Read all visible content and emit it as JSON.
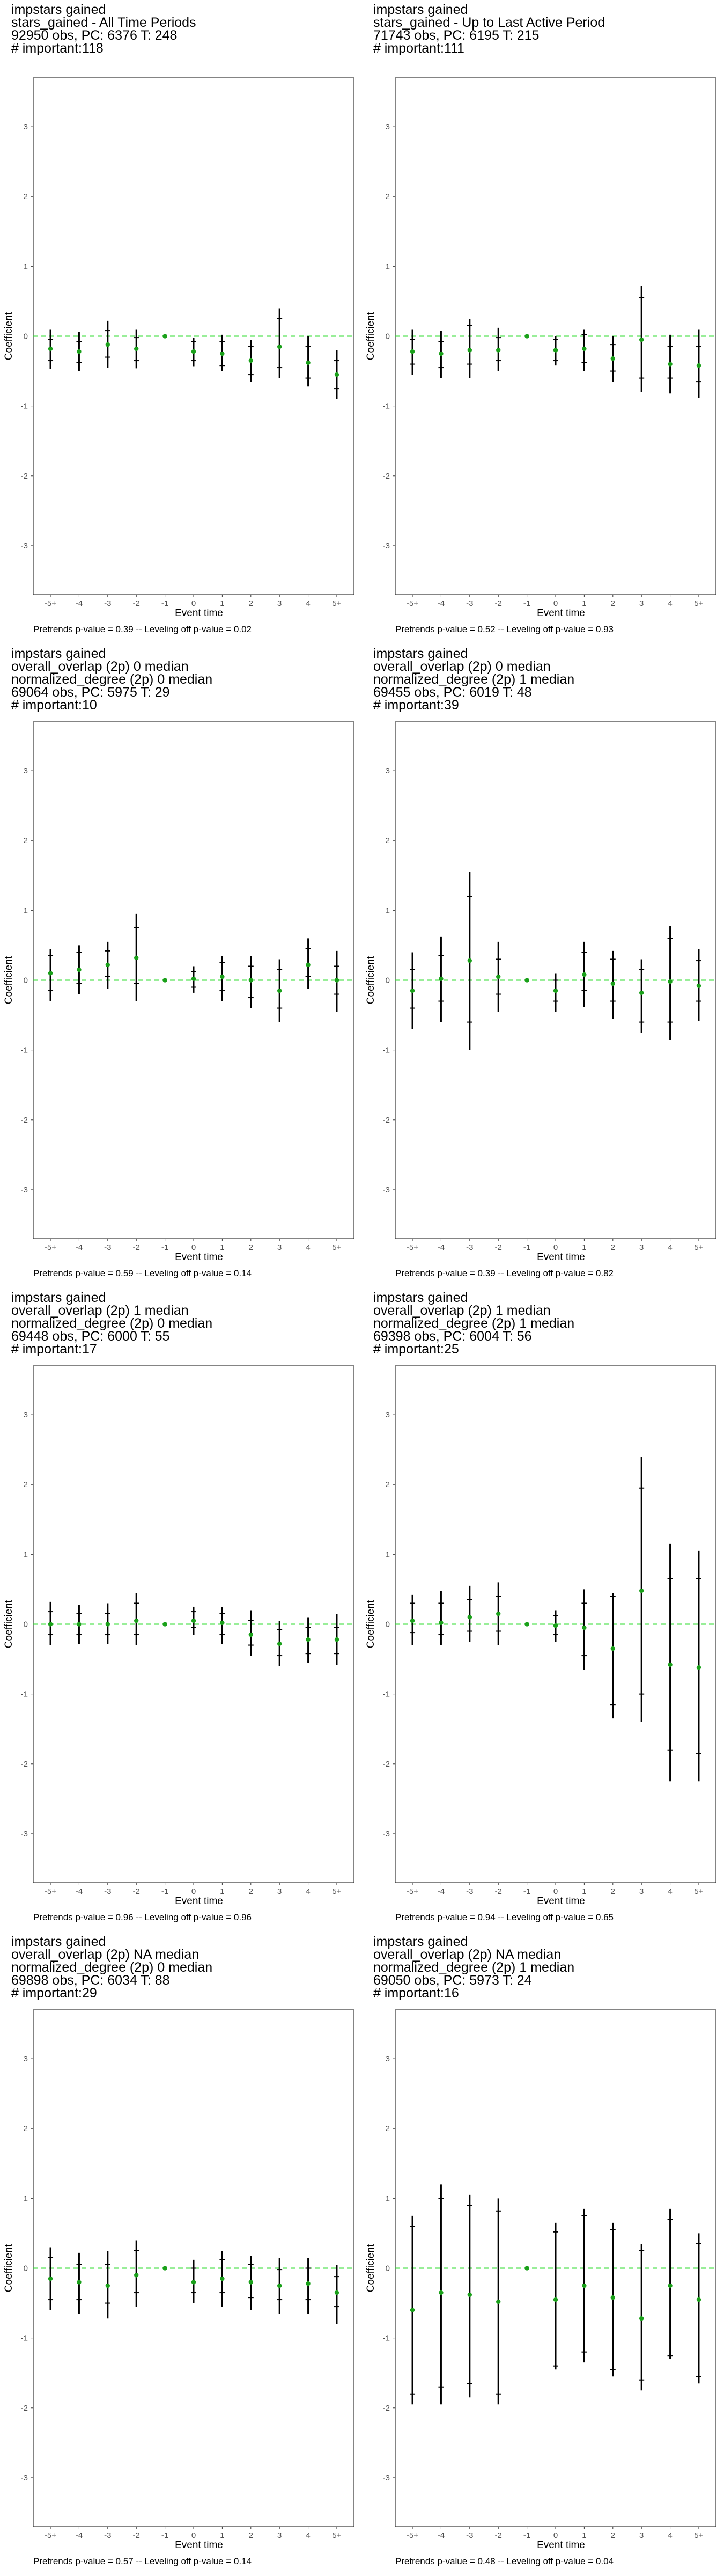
{
  "chart_data": [
    {
      "type": "event-study",
      "title_lines": [
        "impstars gained",
        "stars_gained - All Time Periods",
        "92950 obs, PC: 6376 T: 248",
        "# important:118"
      ],
      "xlabel": "Event time",
      "ylabel": "Coefficient",
      "categories": [
        "-5+",
        "-4",
        "-3",
        "-2",
        "-1",
        "0",
        "1",
        "2",
        "3",
        "4",
        "5+"
      ],
      "ylim": [
        -3.7,
        3.7
      ],
      "yticks": [
        -3,
        -2,
        -1,
        0,
        1,
        2,
        3
      ],
      "points": [
        {
          "est": -0.18,
          "lo_in": -0.35,
          "hi_in": -0.05,
          "lo": -0.47,
          "hi": 0.1
        },
        {
          "est": -0.22,
          "lo_in": -0.38,
          "hi_in": -0.08,
          "lo": -0.5,
          "hi": 0.06
        },
        {
          "est": -0.12,
          "lo_in": -0.3,
          "hi_in": 0.08,
          "lo": -0.45,
          "hi": 0.22
        },
        {
          "est": -0.18,
          "lo_in": -0.35,
          "hi_in": -0.02,
          "lo": -0.46,
          "hi": 0.1
        },
        {
          "est": 0,
          "lo_in": 0,
          "hi_in": 0,
          "lo": 0,
          "hi": 0
        },
        {
          "est": -0.22,
          "lo_in": -0.35,
          "hi_in": -0.08,
          "lo": -0.43,
          "hi": -0.02
        },
        {
          "est": -0.25,
          "lo_in": -0.42,
          "hi_in": -0.08,
          "lo": -0.5,
          "hi": 0.02
        },
        {
          "est": -0.35,
          "lo_in": -0.55,
          "hi_in": -0.15,
          "lo": -0.65,
          "hi": -0.05
        },
        {
          "est": -0.15,
          "lo_in": -0.45,
          "hi_in": 0.25,
          "lo": -0.6,
          "hi": 0.4
        },
        {
          "est": -0.38,
          "lo_in": -0.6,
          "hi_in": -0.15,
          "lo": -0.72,
          "hi": 0.0
        },
        {
          "est": -0.55,
          "lo_in": -0.75,
          "hi_in": -0.35,
          "lo": -0.9,
          "hi": -0.2
        }
      ],
      "footer": "Pretrends p-value = 0.39 -- Leveling off p-value = 0.02"
    },
    {
      "type": "event-study",
      "title_lines": [
        "impstars gained",
        "stars_gained - Up to Last Active Period",
        "71743 obs, PC: 6195 T: 215",
        "# important:111"
      ],
      "xlabel": "Event time",
      "ylabel": "Coefficient",
      "categories": [
        "-5+",
        "-4",
        "-3",
        "-2",
        "-1",
        "0",
        "1",
        "2",
        "3",
        "4",
        "5+"
      ],
      "ylim": [
        -3.7,
        3.7
      ],
      "yticks": [
        -3,
        -2,
        -1,
        0,
        1,
        2,
        3
      ],
      "points": [
        {
          "est": -0.22,
          "lo_in": -0.4,
          "hi_in": -0.05,
          "lo": -0.55,
          "hi": 0.1
        },
        {
          "est": -0.25,
          "lo_in": -0.45,
          "hi_in": -0.08,
          "lo": -0.6,
          "hi": 0.08
        },
        {
          "est": -0.2,
          "lo_in": -0.4,
          "hi_in": 0.15,
          "lo": -0.6,
          "hi": 0.25
        },
        {
          "est": -0.2,
          "lo_in": -0.35,
          "hi_in": -0.02,
          "lo": -0.5,
          "hi": 0.12
        },
        {
          "est": 0,
          "lo_in": 0,
          "hi_in": 0,
          "lo": 0,
          "hi": 0
        },
        {
          "est": -0.2,
          "lo_in": -0.35,
          "hi_in": -0.05,
          "lo": -0.42,
          "hi": 0.0
        },
        {
          "est": -0.18,
          "lo_in": -0.38,
          "hi_in": 0.02,
          "lo": -0.5,
          "hi": 0.1
        },
        {
          "est": -0.32,
          "lo_in": -0.5,
          "hi_in": -0.12,
          "lo": -0.65,
          "hi": 0.0
        },
        {
          "est": -0.05,
          "lo_in": -0.6,
          "hi_in": 0.55,
          "lo": -0.8,
          "hi": 0.72
        },
        {
          "est": -0.4,
          "lo_in": -0.6,
          "hi_in": -0.15,
          "lo": -0.82,
          "hi": 0.02
        },
        {
          "est": -0.42,
          "lo_in": -0.65,
          "hi_in": -0.15,
          "lo": -0.88,
          "hi": 0.1
        }
      ],
      "footer": "Pretrends p-value = 0.52 -- Leveling off p-value = 0.93"
    },
    {
      "type": "event-study",
      "title_lines": [
        "impstars gained",
        "overall_overlap (2p) 0 median",
        "normalized_degree (2p) 0 median",
        "69064 obs, PC: 5975 T: 29",
        "# important:10"
      ],
      "xlabel": "Event time",
      "ylabel": "Coefficient",
      "categories": [
        "-5+",
        "-4",
        "-3",
        "-2",
        "-1",
        "0",
        "1",
        "2",
        "3",
        "4",
        "5+"
      ],
      "ylim": [
        -3.7,
        3.7
      ],
      "yticks": [
        -3,
        -2,
        -1,
        0,
        1,
        2,
        3
      ],
      "points": [
        {
          "est": 0.1,
          "lo_in": -0.15,
          "hi_in": 0.35,
          "lo": -0.3,
          "hi": 0.45
        },
        {
          "est": 0.15,
          "lo_in": -0.05,
          "hi_in": 0.4,
          "lo": -0.2,
          "hi": 0.5
        },
        {
          "est": 0.22,
          "lo_in": 0.05,
          "hi_in": 0.42,
          "lo": -0.12,
          "hi": 0.55
        },
        {
          "est": 0.32,
          "lo_in": -0.05,
          "hi_in": 0.75,
          "lo": -0.3,
          "hi": 0.95
        },
        {
          "est": 0,
          "lo_in": 0,
          "hi_in": 0,
          "lo": 0,
          "hi": 0
        },
        {
          "est": 0.02,
          "lo_in": -0.1,
          "hi_in": 0.12,
          "lo": -0.18,
          "hi": 0.2
        },
        {
          "est": 0.05,
          "lo_in": -0.15,
          "hi_in": 0.25,
          "lo": -0.3,
          "hi": 0.35
        },
        {
          "est": 0.0,
          "lo_in": -0.25,
          "hi_in": 0.2,
          "lo": -0.4,
          "hi": 0.35
        },
        {
          "est": -0.15,
          "lo_in": -0.4,
          "hi_in": 0.15,
          "lo": -0.6,
          "hi": 0.3
        },
        {
          "est": 0.22,
          "lo_in": 0.05,
          "hi_in": 0.45,
          "lo": -0.12,
          "hi": 0.6
        },
        {
          "est": 0.0,
          "lo_in": -0.2,
          "hi_in": 0.2,
          "lo": -0.45,
          "hi": 0.42
        }
      ],
      "footer": "Pretrends p-value = 0.59 -- Leveling off p-value = 0.14"
    },
    {
      "type": "event-study",
      "title_lines": [
        "impstars gained",
        "overall_overlap (2p) 0 median",
        "normalized_degree (2p) 1 median",
        "69455 obs, PC: 6019 T: 48",
        "# important:39"
      ],
      "xlabel": "Event time",
      "ylabel": "Coefficient",
      "categories": [
        "-5+",
        "-4",
        "-3",
        "-2",
        "-1",
        "0",
        "1",
        "2",
        "3",
        "4",
        "5+"
      ],
      "ylim": [
        -3.7,
        3.7
      ],
      "yticks": [
        -3,
        -2,
        -1,
        0,
        1,
        2,
        3
      ],
      "points": [
        {
          "est": -0.15,
          "lo_in": -0.4,
          "hi_in": 0.15,
          "lo": -0.7,
          "hi": 0.4
        },
        {
          "est": 0.02,
          "lo_in": -0.3,
          "hi_in": 0.35,
          "lo": -0.6,
          "hi": 0.62
        },
        {
          "est": 0.28,
          "lo_in": -0.6,
          "hi_in": 1.2,
          "lo": -1.0,
          "hi": 1.55
        },
        {
          "est": 0.05,
          "lo_in": -0.2,
          "hi_in": 0.3,
          "lo": -0.45,
          "hi": 0.55
        },
        {
          "est": 0,
          "lo_in": 0,
          "hi_in": 0,
          "lo": 0,
          "hi": 0
        },
        {
          "est": -0.15,
          "lo_in": -0.3,
          "hi_in": 0.0,
          "lo": -0.45,
          "hi": 0.1
        },
        {
          "est": 0.08,
          "lo_in": -0.15,
          "hi_in": 0.4,
          "lo": -0.38,
          "hi": 0.55
        },
        {
          "est": -0.05,
          "lo_in": -0.3,
          "hi_in": 0.3,
          "lo": -0.55,
          "hi": 0.42
        },
        {
          "est": -0.18,
          "lo_in": -0.6,
          "hi_in": 0.15,
          "lo": -0.75,
          "hi": 0.3
        },
        {
          "est": -0.02,
          "lo_in": -0.6,
          "hi_in": 0.6,
          "lo": -0.85,
          "hi": 0.78
        },
        {
          "est": -0.08,
          "lo_in": -0.3,
          "hi_in": 0.28,
          "lo": -0.58,
          "hi": 0.45
        }
      ],
      "footer": "Pretrends p-value = 0.39 -- Leveling off p-value = 0.82"
    },
    {
      "type": "event-study",
      "title_lines": [
        "impstars gained",
        "overall_overlap (2p) 1 median",
        "normalized_degree (2p) 0 median",
        "69448 obs, PC: 6000 T: 55",
        "# important:17"
      ],
      "xlabel": "Event time",
      "ylabel": "Coefficient",
      "categories": [
        "-5+",
        "-4",
        "-3",
        "-2",
        "-1",
        "0",
        "1",
        "2",
        "3",
        "4",
        "5+"
      ],
      "ylim": [
        -3.7,
        3.7
      ],
      "yticks": [
        -3,
        -2,
        -1,
        0,
        1,
        2,
        3
      ],
      "points": [
        {
          "est": 0.0,
          "lo_in": -0.15,
          "hi_in": 0.18,
          "lo": -0.3,
          "hi": 0.32
        },
        {
          "est": 0.0,
          "lo_in": -0.15,
          "hi_in": 0.15,
          "lo": -0.28,
          "hi": 0.28
        },
        {
          "est": 0.0,
          "lo_in": -0.15,
          "hi_in": 0.15,
          "lo": -0.28,
          "hi": 0.3
        },
        {
          "est": 0.05,
          "lo_in": -0.15,
          "hi_in": 0.3,
          "lo": -0.3,
          "hi": 0.45
        },
        {
          "est": 0,
          "lo_in": 0,
          "hi_in": 0,
          "lo": 0,
          "hi": 0
        },
        {
          "est": 0.05,
          "lo_in": -0.05,
          "hi_in": 0.18,
          "lo": -0.15,
          "hi": 0.25
        },
        {
          "est": 0.02,
          "lo_in": -0.15,
          "hi_in": 0.15,
          "lo": -0.28,
          "hi": 0.25
        },
        {
          "est": -0.15,
          "lo_in": -0.3,
          "hi_in": 0.05,
          "lo": -0.45,
          "hi": 0.2
        },
        {
          "est": -0.28,
          "lo_in": -0.45,
          "hi_in": -0.08,
          "lo": -0.6,
          "hi": 0.05
        },
        {
          "est": -0.22,
          "lo_in": -0.42,
          "hi_in": -0.05,
          "lo": -0.55,
          "hi": 0.1
        },
        {
          "est": -0.22,
          "lo_in": -0.42,
          "hi_in": -0.05,
          "lo": -0.58,
          "hi": 0.15
        }
      ],
      "footer": "Pretrends p-value = 0.96 -- Leveling off p-value = 0.96"
    },
    {
      "type": "event-study",
      "title_lines": [
        "impstars gained",
        "overall_overlap (2p) 1 median",
        "normalized_degree (2p) 1 median",
        "69398 obs, PC: 6004 T: 56",
        "# important:25"
      ],
      "xlabel": "Event time",
      "ylabel": "Coefficient",
      "categories": [
        "-5+",
        "-4",
        "-3",
        "-2",
        "-1",
        "0",
        "1",
        "2",
        "3",
        "4",
        "5+"
      ],
      "ylim": [
        -3.7,
        3.7
      ],
      "yticks": [
        -3,
        -2,
        -1,
        0,
        1,
        2,
        3
      ],
      "points": [
        {
          "est": 0.05,
          "lo_in": -0.12,
          "hi_in": 0.3,
          "lo": -0.3,
          "hi": 0.42
        },
        {
          "est": 0.02,
          "lo_in": -0.15,
          "hi_in": 0.3,
          "lo": -0.3,
          "hi": 0.48
        },
        {
          "est": 0.1,
          "lo_in": -0.1,
          "hi_in": 0.35,
          "lo": -0.25,
          "hi": 0.55
        },
        {
          "est": 0.15,
          "lo_in": -0.1,
          "hi_in": 0.4,
          "lo": -0.3,
          "hi": 0.6
        },
        {
          "est": 0,
          "lo_in": 0,
          "hi_in": 0,
          "lo": 0,
          "hi": 0
        },
        {
          "est": -0.02,
          "lo_in": -0.15,
          "hi_in": 0.12,
          "lo": -0.25,
          "hi": 0.2
        },
        {
          "est": -0.05,
          "lo_in": -0.45,
          "hi_in": 0.3,
          "lo": -0.65,
          "hi": 0.5
        },
        {
          "est": -0.35,
          "lo_in": -1.15,
          "hi_in": 0.4,
          "lo": -1.35,
          "hi": 0.45
        },
        {
          "est": 0.48,
          "lo_in": -1.0,
          "hi_in": 1.95,
          "lo": -1.4,
          "hi": 2.4
        },
        {
          "est": -0.58,
          "lo_in": -1.8,
          "hi_in": 0.65,
          "lo": -2.25,
          "hi": 1.15
        },
        {
          "est": -0.62,
          "lo_in": -1.85,
          "hi_in": 0.65,
          "lo": -2.25,
          "hi": 1.05
        }
      ],
      "footer": "Pretrends p-value = 0.94 -- Leveling off p-value = 0.65"
    },
    {
      "type": "event-study",
      "title_lines": [
        "impstars gained",
        "overall_overlap (2p) NA median",
        "normalized_degree (2p) 0 median",
        "69898 obs, PC: 6034 T: 88",
        "# important:29"
      ],
      "xlabel": "Event time",
      "ylabel": "Coefficient",
      "categories": [
        "-5+",
        "-4",
        "-3",
        "-2",
        "-1",
        "0",
        "1",
        "2",
        "3",
        "4",
        "5+"
      ],
      "ylim": [
        -3.7,
        3.7
      ],
      "yticks": [
        -3,
        -2,
        -1,
        0,
        1,
        2,
        3
      ],
      "points": [
        {
          "est": -0.15,
          "lo_in": -0.45,
          "hi_in": 0.15,
          "lo": -0.6,
          "hi": 0.3
        },
        {
          "est": -0.2,
          "lo_in": -0.45,
          "hi_in": 0.05,
          "lo": -0.65,
          "hi": 0.22
        },
        {
          "est": -0.25,
          "lo_in": -0.5,
          "hi_in": 0.05,
          "lo": -0.72,
          "hi": 0.25
        },
        {
          "est": -0.1,
          "lo_in": -0.35,
          "hi_in": 0.25,
          "lo": -0.55,
          "hi": 0.4
        },
        {
          "est": 0,
          "lo_in": 0,
          "hi_in": 0,
          "lo": 0,
          "hi": 0
        },
        {
          "est": -0.2,
          "lo_in": -0.35,
          "hi_in": 0.0,
          "lo": -0.5,
          "hi": 0.12
        },
        {
          "est": -0.15,
          "lo_in": -0.35,
          "hi_in": 0.12,
          "lo": -0.55,
          "hi": 0.25
        },
        {
          "est": -0.2,
          "lo_in": -0.42,
          "hi_in": 0.05,
          "lo": -0.6,
          "hi": 0.18
        },
        {
          "est": -0.25,
          "lo_in": -0.45,
          "hi_in": -0.02,
          "lo": -0.65,
          "hi": 0.15
        },
        {
          "est": -0.22,
          "lo_in": -0.45,
          "hi_in": 0.0,
          "lo": -0.65,
          "hi": 0.15
        },
        {
          "est": -0.35,
          "lo_in": -0.55,
          "hi_in": -0.12,
          "lo": -0.8,
          "hi": 0.05
        }
      ],
      "footer": "Pretrends p-value = 0.57 -- Leveling off p-value = 0.14"
    },
    {
      "type": "event-study",
      "title_lines": [
        "impstars gained",
        "overall_overlap (2p) NA median",
        "normalized_degree (2p) 1 median",
        "69050 obs, PC: 5973 T: 24",
        "# important:16"
      ],
      "xlabel": "Event time",
      "ylabel": "Coefficient",
      "categories": [
        "-5+",
        "-4",
        "-3",
        "-2",
        "-1",
        "0",
        "1",
        "2",
        "3",
        "4",
        "5+"
      ],
      "ylim": [
        -3.7,
        3.7
      ],
      "yticks": [
        -3,
        -2,
        -1,
        0,
        1,
        2,
        3
      ],
      "points": [
        {
          "est": -0.6,
          "lo_in": -1.8,
          "hi_in": 0.6,
          "lo": -1.95,
          "hi": 0.75
        },
        {
          "est": -0.35,
          "lo_in": -1.7,
          "hi_in": 1.0,
          "lo": -1.95,
          "hi": 1.2
        },
        {
          "est": -0.38,
          "lo_in": -1.65,
          "hi_in": 0.9,
          "lo": -1.85,
          "hi": 1.05
        },
        {
          "est": -0.48,
          "lo_in": -1.8,
          "hi_in": 0.82,
          "lo": -1.95,
          "hi": 1.0
        },
        {
          "est": 0,
          "lo_in": 0,
          "hi_in": 0,
          "lo": 0,
          "hi": 0
        },
        {
          "est": -0.45,
          "lo_in": -1.4,
          "hi_in": 0.52,
          "lo": -1.45,
          "hi": 0.65
        },
        {
          "est": -0.25,
          "lo_in": -1.2,
          "hi_in": 0.75,
          "lo": -1.35,
          "hi": 0.85
        },
        {
          "est": -0.42,
          "lo_in": -1.45,
          "hi_in": 0.55,
          "lo": -1.55,
          "hi": 0.65
        },
        {
          "est": -0.72,
          "lo_in": -1.6,
          "hi_in": 0.25,
          "lo": -1.75,
          "hi": 0.35
        },
        {
          "est": -0.25,
          "lo_in": -1.25,
          "hi_in": 0.7,
          "lo": -1.3,
          "hi": 0.85
        },
        {
          "est": -0.45,
          "lo_in": -1.55,
          "hi_in": 0.35,
          "lo": -1.65,
          "hi": 0.5
        }
      ],
      "footer": "Pretrends p-value = 0.48 -- Leveling off p-value = 0.04"
    }
  ],
  "colors": {
    "point": "#1aa01a",
    "zero_line": "#33dd33",
    "bar": "#000000",
    "tick_label": "#4d4d4d"
  }
}
